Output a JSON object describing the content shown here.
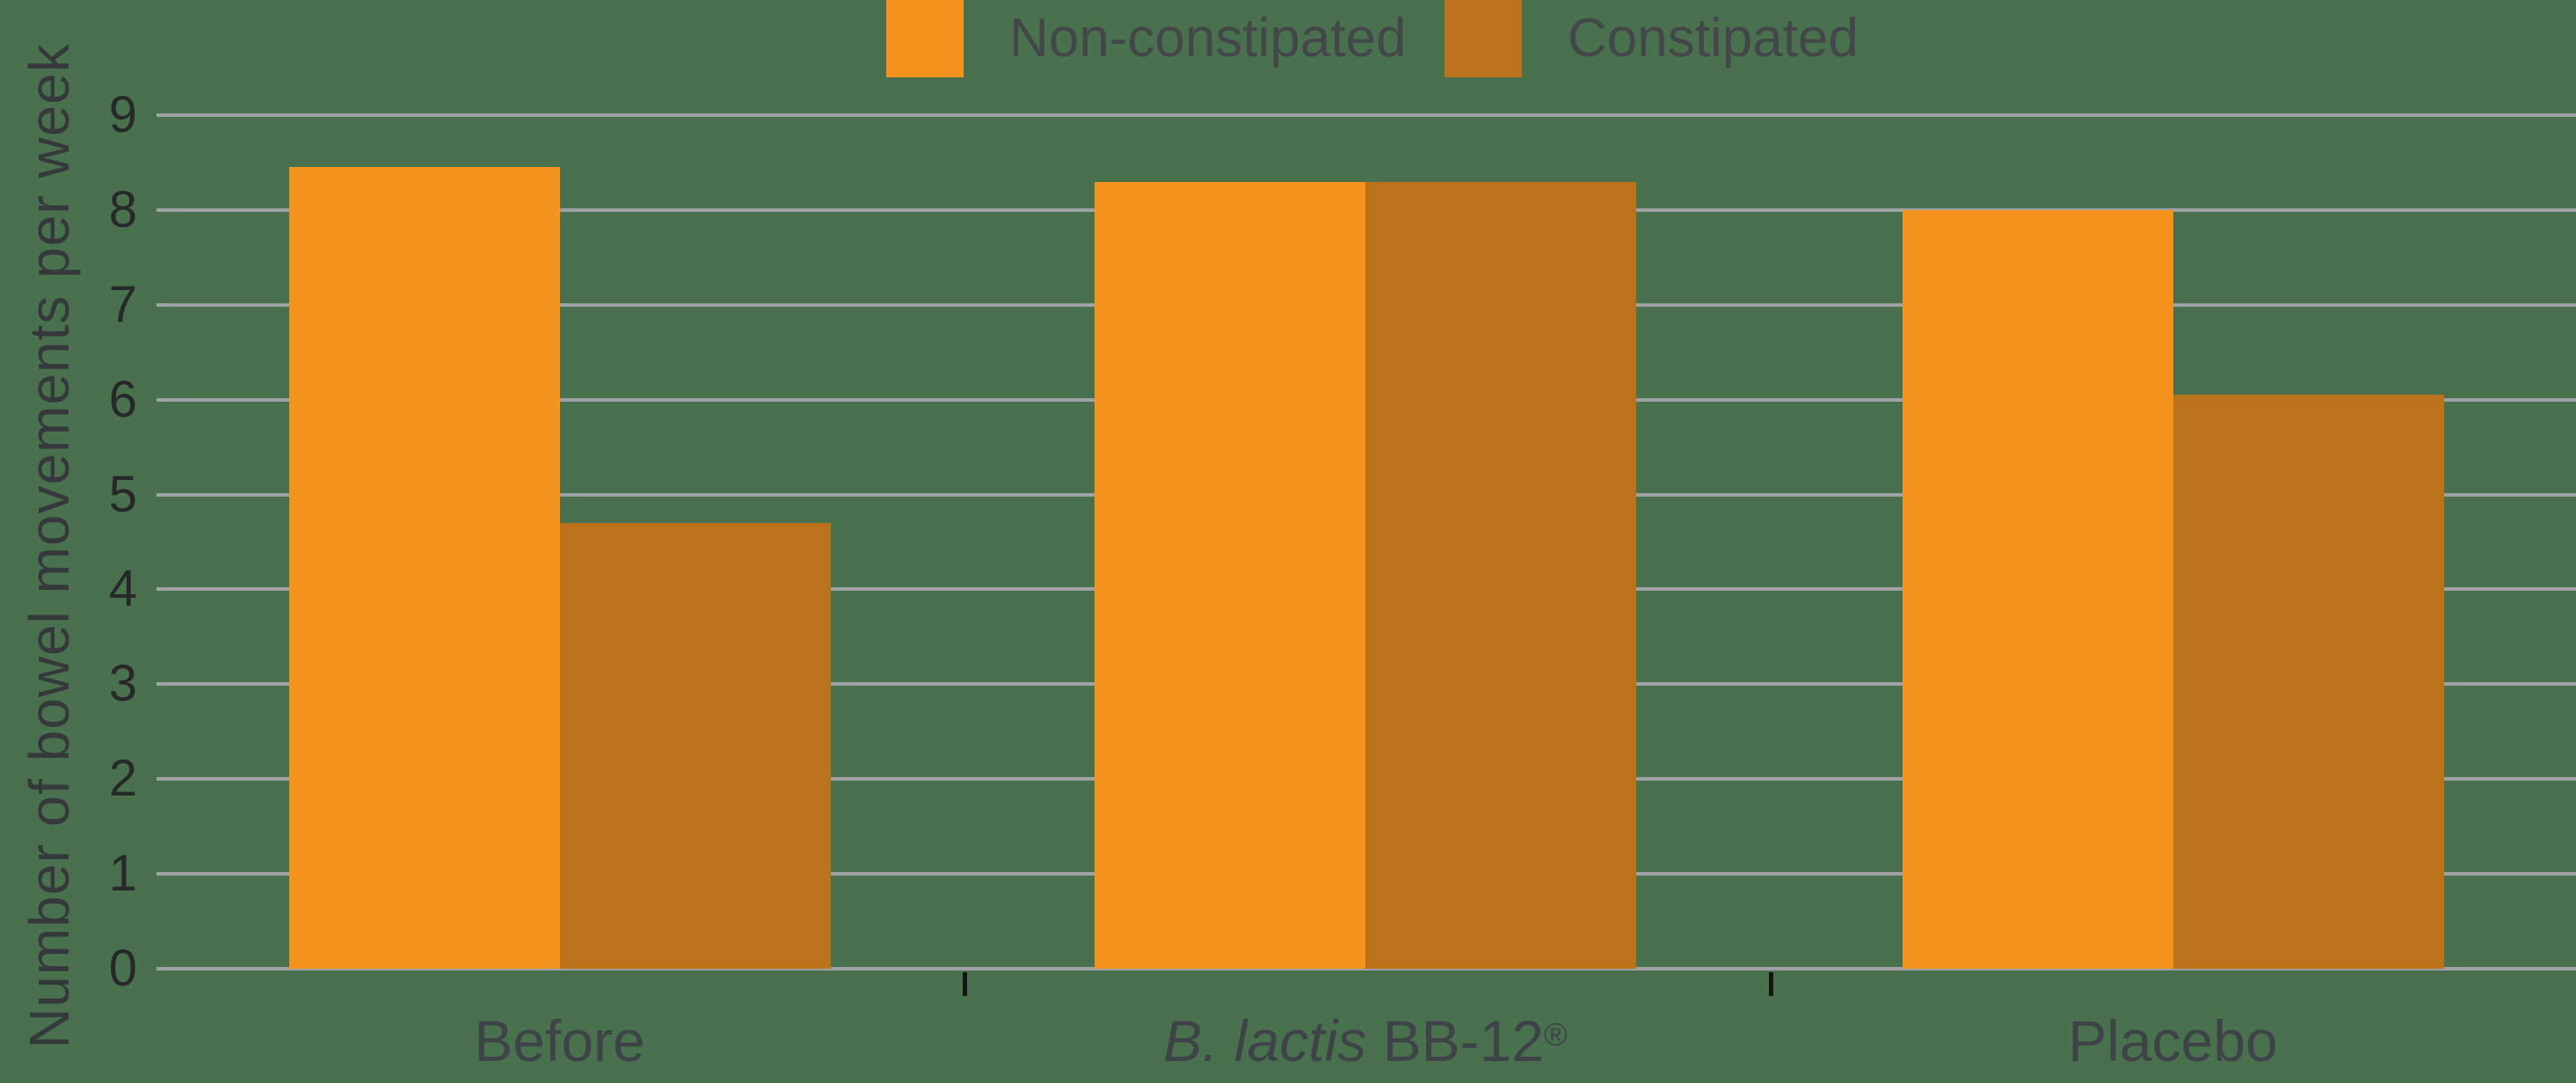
{
  "chart_data": {
    "type": "bar",
    "title": "",
    "xlabel": "",
    "ylabel": "Number of bowel movements per week",
    "ylim": [
      0,
      9
    ],
    "yticks": [
      0,
      1,
      2,
      3,
      4,
      5,
      6,
      7,
      8,
      9
    ],
    "grid": "horizontal",
    "legend_position": "top-center",
    "background_color": "#4A714E",
    "categories": [
      "Before",
      "B. lactis BB-12®",
      "Placebo"
    ],
    "category_parts": [
      {
        "italic": "",
        "normal": "Before",
        "sup": ""
      },
      {
        "italic": "B. lactis",
        "normal": " BB-12",
        "sup": "®"
      },
      {
        "italic": "",
        "normal": "Placebo",
        "sup": ""
      }
    ],
    "series": [
      {
        "name": "Non-constipated",
        "color": "#F4941E",
        "values": [
          8.45,
          8.3,
          8.0
        ]
      },
      {
        "name": "Constipated",
        "color": "#BC721B",
        "values": [
          4.7,
          8.3,
          6.05
        ]
      }
    ],
    "colors": {
      "grid": "#9EA2A5",
      "axis_tick_text": "#27282A",
      "category_text": "#3E4347",
      "legend_text": "#43474A",
      "y_title_text": "#35393C",
      "tick_mark": "#161616"
    }
  }
}
